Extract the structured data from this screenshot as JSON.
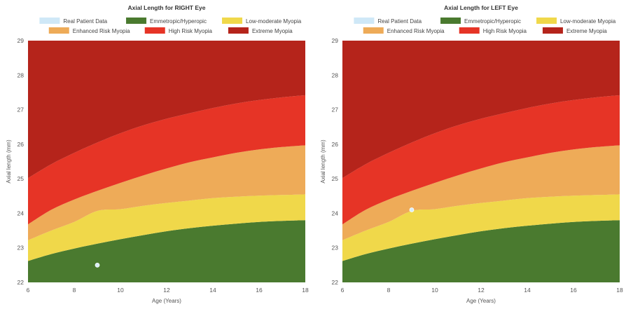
{
  "colors": {
    "real_patient": "#cfe8f7",
    "emmetropic": "#4a7a2f",
    "low_moderate": "#f0d84a",
    "enhanced": "#eeab58",
    "high_risk": "#e63426",
    "extreme": "#b5241b",
    "patient_point": "#d9eefa"
  },
  "legend": [
    {
      "key": "real_patient",
      "label": "Real Patient Data"
    },
    {
      "key": "emmetropic",
      "label": "Emmetropic/Hyperopic"
    },
    {
      "key": "low_moderate",
      "label": "Low-moderate Myopia"
    },
    {
      "key": "enhanced",
      "label": "Enhanced Risk Myopia"
    },
    {
      "key": "high_risk",
      "label": "High Risk Myopia"
    },
    {
      "key": "extreme",
      "label": "Extreme Myopia"
    }
  ],
  "chart_data": [
    {
      "type": "area",
      "title": "Axial Length for RIGHT Eye",
      "xlabel": "Age (Years)",
      "ylabel": "Axial length (mm)",
      "xlim": [
        6,
        18
      ],
      "ylim": [
        22,
        29
      ],
      "x_ticks": [
        6,
        8,
        10,
        12,
        14,
        16,
        18
      ],
      "y_ticks": [
        22,
        23,
        24,
        25,
        26,
        27,
        28,
        29
      ],
      "legend_position": "top",
      "grid": false,
      "x": [
        6,
        7,
        8,
        9,
        10,
        11,
        12,
        13,
        14,
        15,
        16,
        17,
        18
      ],
      "boundaries": [
        {
          "name": "Emmetropic/Hyperopic",
          "upper": [
            22.62,
            22.82,
            22.98,
            23.12,
            23.25,
            23.37,
            23.48,
            23.57,
            23.64,
            23.7,
            23.75,
            23.78,
            23.8
          ]
        },
        {
          "name": "Low-moderate Myopia",
          "upper": [
            23.22,
            23.5,
            23.75,
            24.07,
            24.12,
            24.22,
            24.3,
            24.37,
            24.44,
            24.48,
            24.51,
            24.53,
            24.55
          ]
        },
        {
          "name": "Enhanced Risk Myopia",
          "upper": [
            23.68,
            24.1,
            24.4,
            24.65,
            24.88,
            25.1,
            25.3,
            25.48,
            25.62,
            25.75,
            25.85,
            25.92,
            25.97
          ]
        },
        {
          "name": "High Risk Myopia",
          "upper": [
            25.02,
            25.42,
            25.75,
            26.05,
            26.32,
            26.55,
            26.74,
            26.9,
            27.05,
            27.18,
            27.28,
            27.36,
            27.42
          ]
        },
        {
          "name": "Extreme Myopia",
          "upper": [
            29,
            29,
            29,
            29,
            29,
            29,
            29,
            29,
            29,
            29,
            29,
            29,
            29
          ]
        }
      ],
      "patient_points": [
        {
          "x": 9,
          "y": 22.5
        }
      ]
    },
    {
      "type": "area",
      "title": "Axial Length for LEFT Eye",
      "xlabel": "Age (Years)",
      "ylabel": "Axial length (mm)",
      "xlim": [
        6,
        18
      ],
      "ylim": [
        22,
        29
      ],
      "x_ticks": [
        6,
        8,
        10,
        12,
        14,
        16,
        18
      ],
      "y_ticks": [
        22,
        23,
        24,
        25,
        26,
        27,
        28,
        29
      ],
      "legend_position": "top",
      "grid": false,
      "x": [
        6,
        7,
        8,
        9,
        10,
        11,
        12,
        13,
        14,
        15,
        16,
        17,
        18
      ],
      "boundaries": [
        {
          "name": "Emmetropic/Hyperopic",
          "upper": [
            22.62,
            22.82,
            22.98,
            23.12,
            23.25,
            23.37,
            23.48,
            23.57,
            23.64,
            23.7,
            23.75,
            23.78,
            23.8
          ]
        },
        {
          "name": "Low-moderate Myopia",
          "upper": [
            23.22,
            23.5,
            23.75,
            24.07,
            24.12,
            24.22,
            24.3,
            24.37,
            24.44,
            24.48,
            24.51,
            24.53,
            24.55
          ]
        },
        {
          "name": "Enhanced Risk Myopia",
          "upper": [
            23.68,
            24.1,
            24.4,
            24.65,
            24.88,
            25.1,
            25.3,
            25.48,
            25.62,
            25.75,
            25.85,
            25.92,
            25.97
          ]
        },
        {
          "name": "High Risk Myopia",
          "upper": [
            25.02,
            25.42,
            25.75,
            26.05,
            26.32,
            26.55,
            26.74,
            26.9,
            27.05,
            27.18,
            27.28,
            27.36,
            27.42
          ]
        },
        {
          "name": "Extreme Myopia",
          "upper": [
            29,
            29,
            29,
            29,
            29,
            29,
            29,
            29,
            29,
            29,
            29,
            29,
            29
          ]
        }
      ],
      "patient_points": [
        {
          "x": 9,
          "y": 24.1
        }
      ]
    }
  ]
}
